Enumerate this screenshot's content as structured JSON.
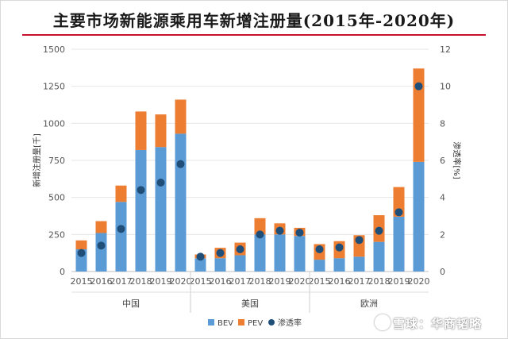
{
  "chart_data": {
    "type": "bar",
    "title": "主要市场新能源乘用车新增注册量(2015年-2020年)",
    "ylabel_left": "新增注册量[千]",
    "ylabel_right": "渗透率[%]",
    "ylim_left": [
      0,
      1500
    ],
    "yticks_left": [
      "0",
      "250",
      "500",
      "750",
      "1000",
      "1250",
      "1500"
    ],
    "ylim_right": [
      0,
      12
    ],
    "yticks_right": [
      "0",
      "2",
      "4",
      "6",
      "8",
      "10",
      "12"
    ],
    "groups": [
      {
        "name": "中国",
        "years": [
          "2015",
          "2016",
          "2017",
          "2018",
          "2019",
          "2020"
        ]
      },
      {
        "name": "美国",
        "years": [
          "2015",
          "2016",
          "2017",
          "2018",
          "2019",
          "2020"
        ]
      },
      {
        "name": "欧洲",
        "years": [
          "2015",
          "2016",
          "2017",
          "2018",
          "2019",
          "2020"
        ]
      }
    ],
    "series": [
      {
        "name": "BEV",
        "type": "stacked-bar",
        "color": "#5b9bd5",
        "values": [
          150,
          260,
          470,
          820,
          840,
          930,
          90,
          90,
          110,
          250,
          250,
          240,
          80,
          90,
          100,
          200,
          370,
          740
        ]
      },
      {
        "name": "PEV",
        "type": "stacked-bar",
        "color": "#ed7d31",
        "values": [
          60,
          80,
          110,
          260,
          220,
          230,
          25,
          70,
          85,
          110,
          75,
          55,
          105,
          115,
          145,
          180,
          200,
          630
        ]
      },
      {
        "name": "渗透率",
        "type": "scatter",
        "color": "#1f4e79",
        "values": [
          1.0,
          1.4,
          2.3,
          4.4,
          4.8,
          5.8,
          0.8,
          1.0,
          1.2,
          2.0,
          2.2,
          2.1,
          1.2,
          1.3,
          1.7,
          2.2,
          3.2,
          10.0
        ]
      }
    ]
  },
  "watermark": {
    "text": "雪球：华商韬略"
  }
}
